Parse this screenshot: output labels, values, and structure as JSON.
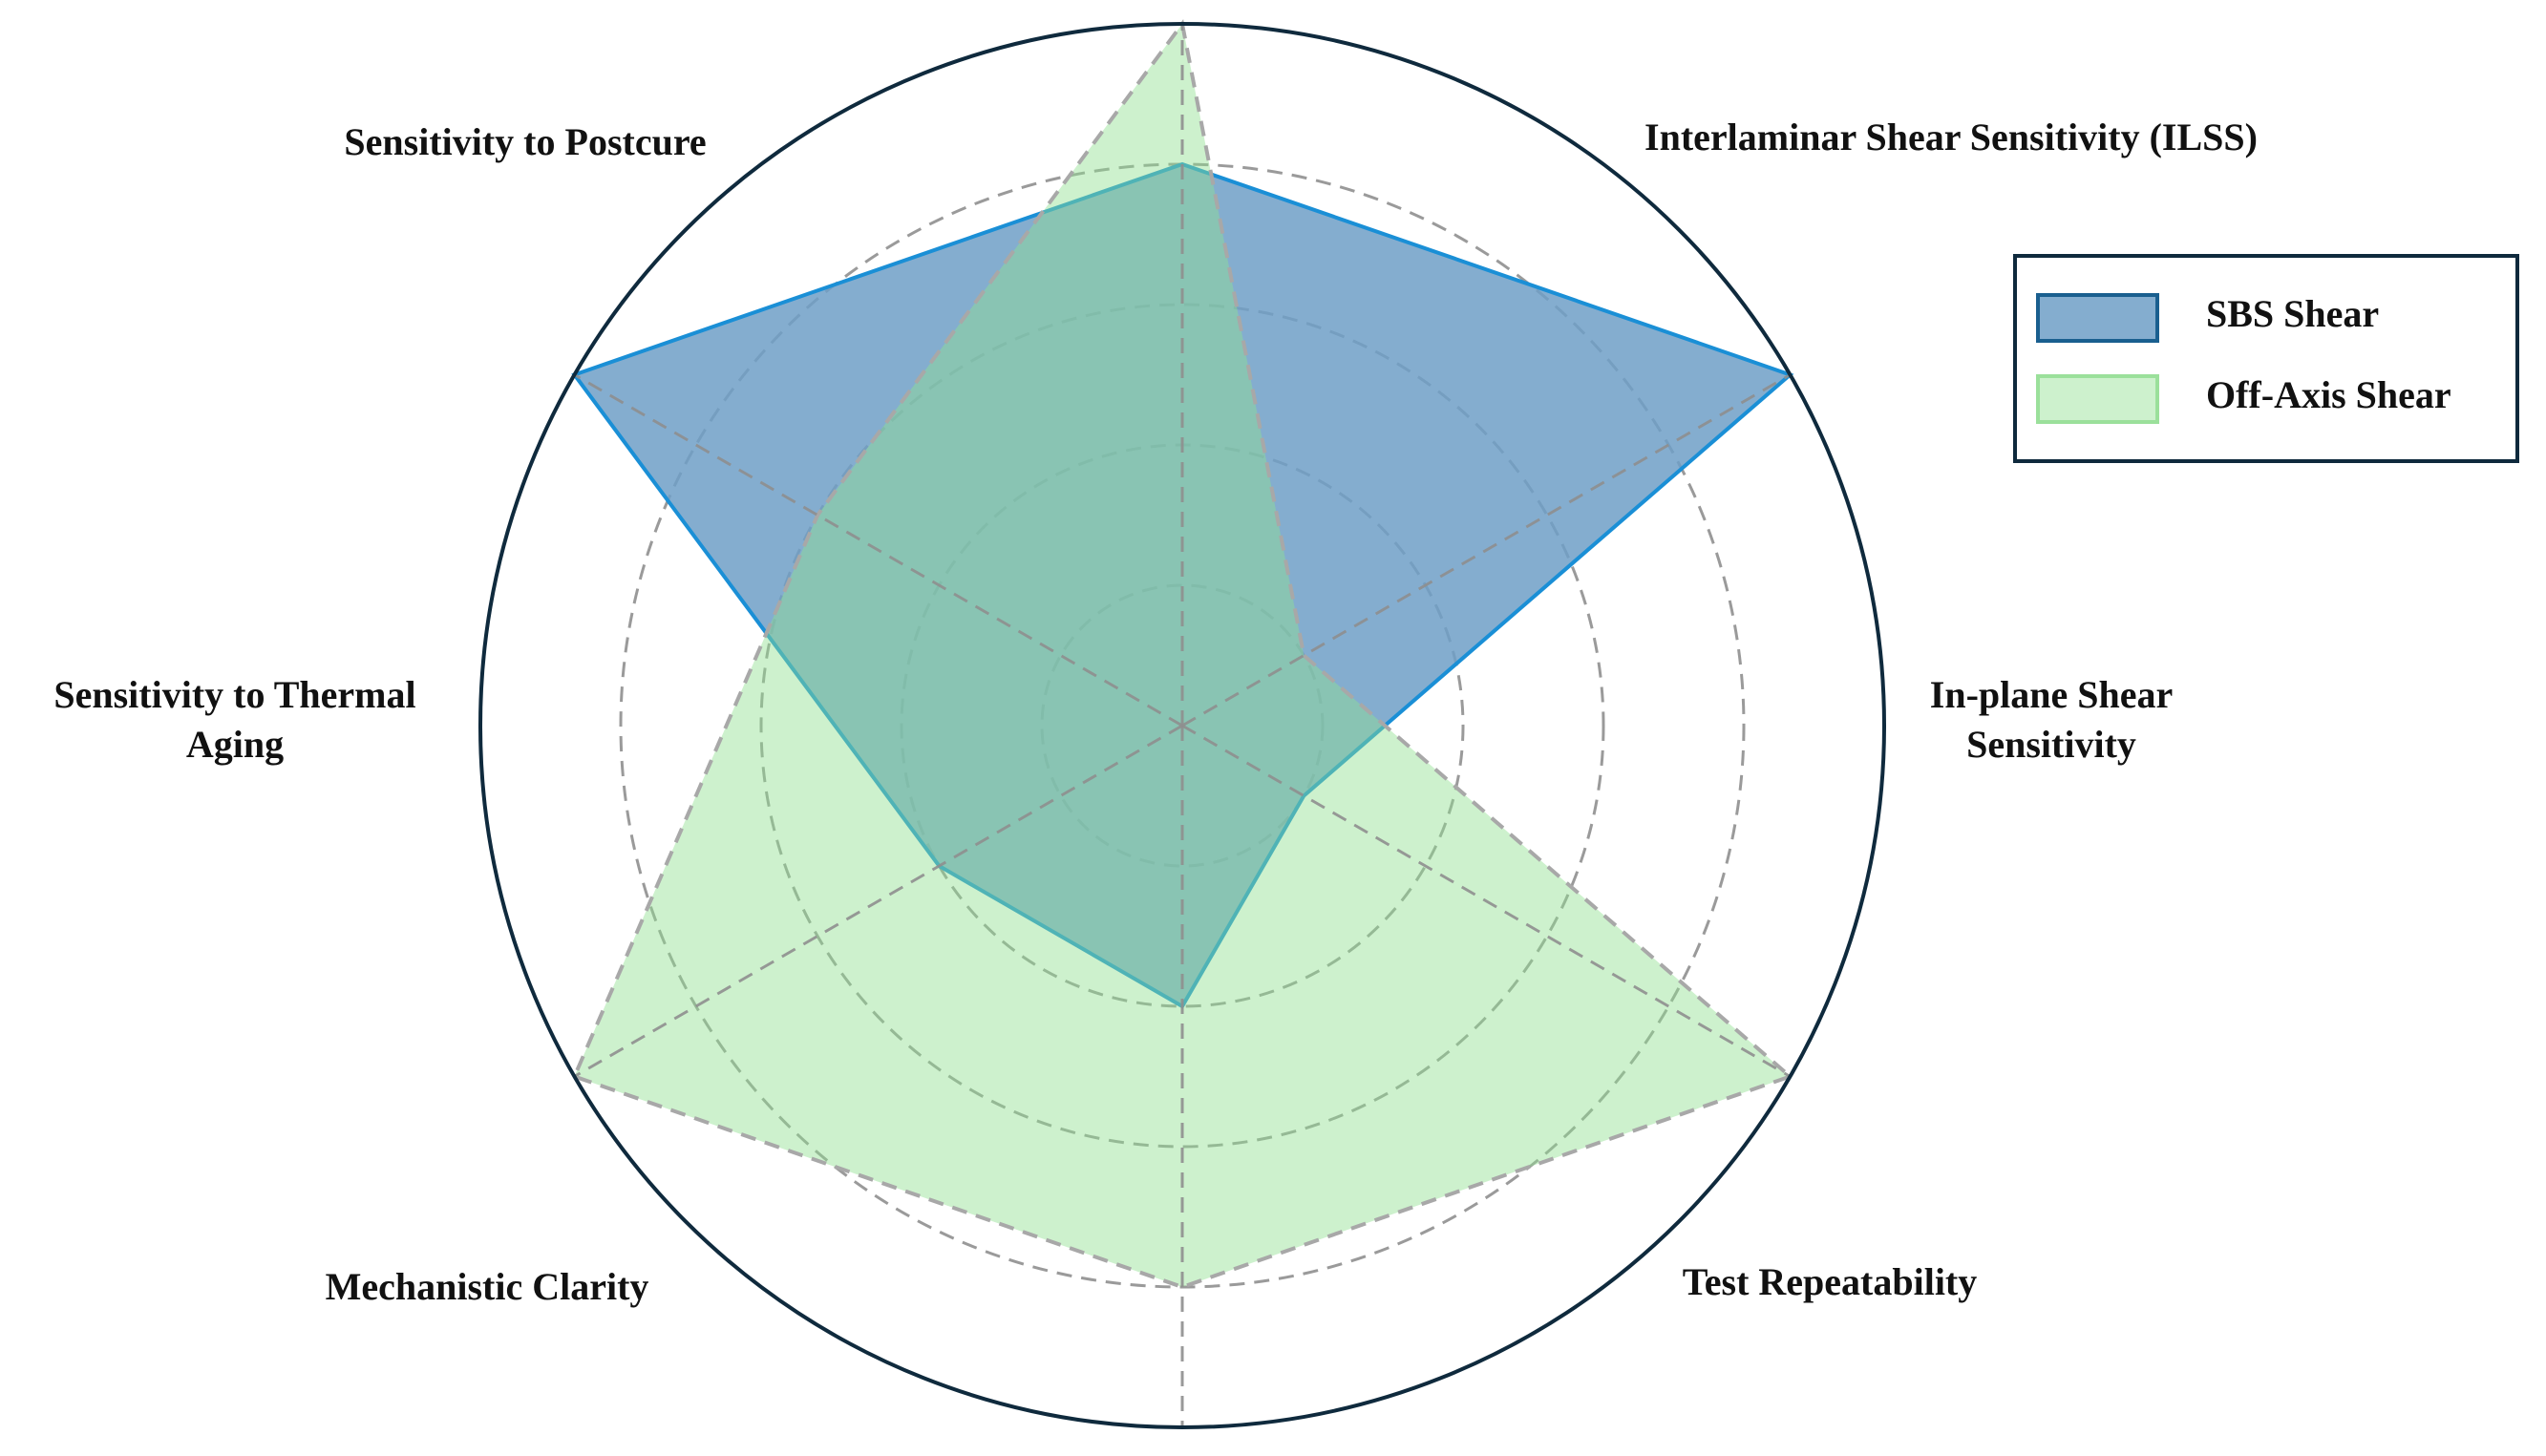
{
  "chart_data": {
    "type": "radar",
    "axes": [
      "Interlaminar Shear Sensitivity (ILSS)",
      "In-plane Shear Sensitivity",
      "Test Repeatability",
      "Mechanistic Clarity",
      "Sensitivity to Thermal Aging",
      "Sensitivity to Postcure"
    ],
    "axis_labels": [
      [
        "Interlaminar Shear Sensitivity (ILSS)"
      ],
      [
        "In-plane Shear",
        "Sensitivity"
      ],
      [
        "Test Repeatability"
      ],
      [
        "Mechanistic Clarity"
      ],
      [
        "Sensitivity to Thermal",
        "Aging"
      ],
      [
        "Sensitivity to Postcure"
      ]
    ],
    "rlim": [
      0,
      5
    ],
    "grid_levels": [
      1,
      2,
      3,
      4
    ],
    "grid": true,
    "legend_position": "top-right",
    "series": [
      {
        "name": "SBS Shear",
        "values": [
          5,
          1,
          2,
          2,
          5,
          4
        ],
        "fill_color": "#6f9fc7",
        "fill_opacity": 0.85,
        "stroke_color": "#1a8fd6",
        "legend_border_color": "#1a5f8f",
        "line_style": "solid"
      },
      {
        "name": "Off-Axis Shear",
        "values": [
          1,
          5,
          4,
          5,
          3,
          5
        ],
        "fill_color": "#90e090",
        "fill_opacity": 0.45,
        "stroke_color": "#a8a8a8",
        "legend_border_color": "#9be09b",
        "line_style": "dashed"
      }
    ],
    "colors": {
      "outer_circle": "#0f2a3d",
      "grid": "#8f8f8f",
      "legend_border": "#0f2a3d"
    }
  }
}
